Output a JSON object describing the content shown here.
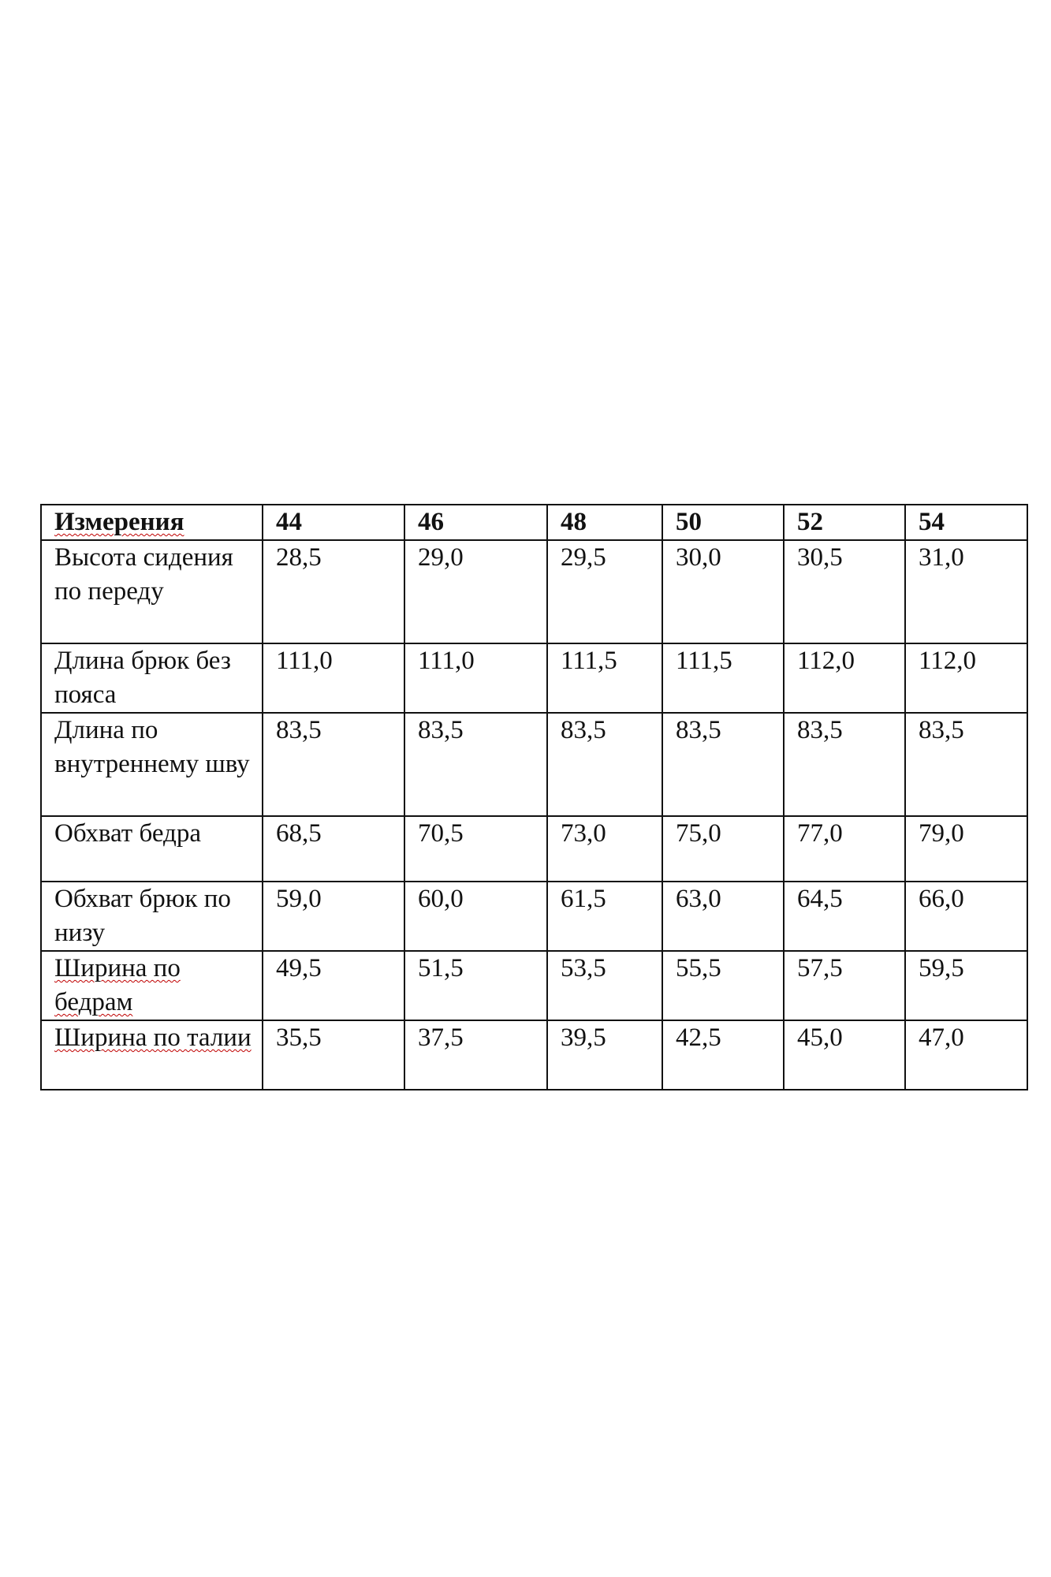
{
  "table": {
    "header": [
      "Измерения",
      "44",
      "46",
      "48",
      "50",
      "52",
      "54"
    ],
    "rows": [
      {
        "label": "Высота сидения по переду",
        "values": [
          "28,5",
          "29,0",
          "29,5",
          "30,0",
          "30,5",
          "31,0"
        ]
      },
      {
        "label": "Длина брюк без пояса",
        "values": [
          "111,0",
          "111,0",
          "111,5",
          "111,5",
          "112,0",
          "112,0"
        ]
      },
      {
        "label": "Длина по внутреннему шву",
        "values": [
          "83,5",
          "83,5",
          "83,5",
          "83,5",
          "83,5",
          "83,5"
        ]
      },
      {
        "label": "Обхват бедра",
        "values": [
          "68,5",
          "70,5",
          "73,0",
          "75,0",
          "77,0",
          "79,0"
        ]
      },
      {
        "label": "Обхват брюк по низу",
        "values": [
          "59,0",
          "60,0",
          "61,5",
          "63,0",
          "64,5",
          "66,0"
        ]
      },
      {
        "label": "Ширина по бедрам",
        "values": [
          "49,5",
          "51,5",
          "53,5",
          "55,5",
          "57,5",
          "59,5"
        ]
      },
      {
        "label": "Ширина по талии",
        "values": [
          "35,5",
          "37,5",
          "39,5",
          "42,5",
          "45,0",
          "47,0"
        ]
      }
    ]
  }
}
